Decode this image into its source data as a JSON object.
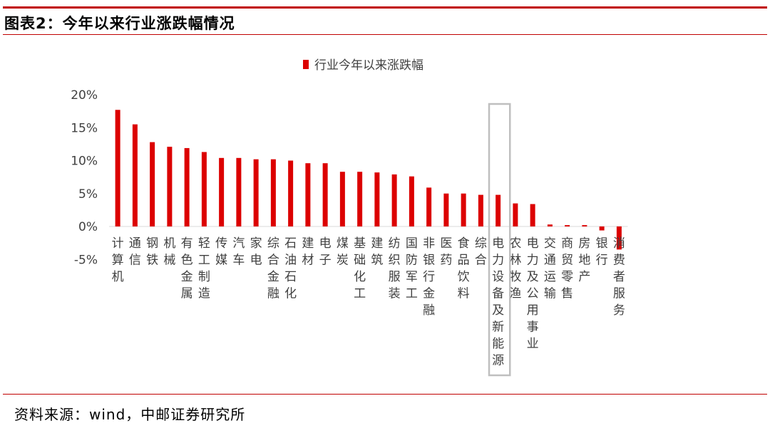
{
  "header": {
    "title": "图表2：今年以来行业涨跌幅情况"
  },
  "footer": {
    "source": "资料来源：wind，中邮证券研究所"
  },
  "chart_data": {
    "type": "bar",
    "legend": {
      "label": "行业今年以来涨跌幅",
      "position": "top"
    },
    "bar_color": "#dc0000",
    "highlight_color": "#bfbfbf",
    "highlight_category": "电力设备及新能源",
    "ylim": [
      -5,
      20
    ],
    "yticks": [
      "20%",
      "15%",
      "10%",
      "5%",
      "0%",
      "-5%"
    ],
    "ytick_values": [
      20,
      15,
      10,
      5,
      0,
      -5
    ],
    "categories": [
      "计算机",
      "通信",
      "钢铁",
      "机械",
      "有色金属",
      "轻工制造",
      "传媒",
      "汽车",
      "家电",
      "综合金融",
      "石油石化",
      "建材",
      "电子",
      "煤炭",
      "基础化工",
      "建筑",
      "纺织服装",
      "国防军工",
      "非银行金融",
      "医药",
      "食品饮料",
      "综合",
      "电力设备及新能源",
      "农林牧渔",
      "电力及公用事业",
      "交通运输",
      "商贸零售",
      "房地产",
      "银行",
      "消费者服务"
    ],
    "values": [
      17.7,
      15.5,
      12.8,
      12.1,
      11.9,
      11.3,
      10.4,
      10.4,
      10.2,
      10.2,
      10.0,
      9.6,
      9.6,
      8.3,
      8.3,
      8.2,
      7.9,
      7.6,
      5.9,
      5.0,
      5.0,
      4.8,
      4.8,
      3.5,
      3.4,
      0.3,
      0.2,
      0.2,
      -0.6,
      -3.5
    ]
  }
}
